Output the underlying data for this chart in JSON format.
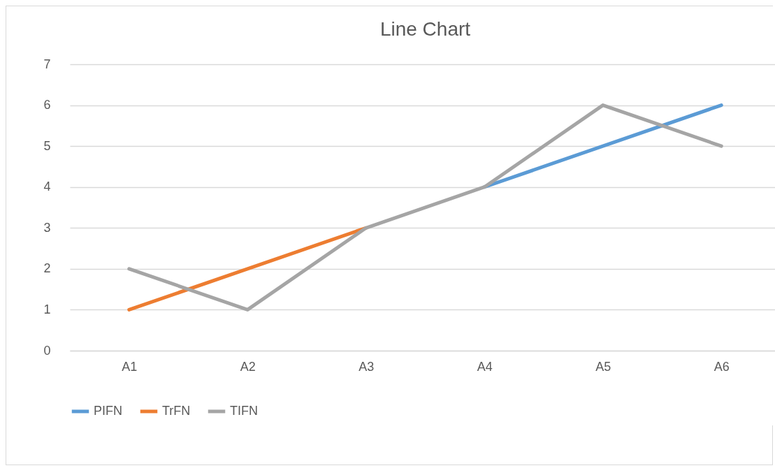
{
  "chart_data": {
    "type": "line",
    "title": "Line Chart",
    "categories": [
      "A1",
      "A2",
      "A3",
      "A4",
      "A5",
      "A6"
    ],
    "series": [
      {
        "name": "PIFN",
        "color": "#5b9bd5",
        "values": [
          null,
          null,
          null,
          4,
          5,
          6
        ]
      },
      {
        "name": "TrFN",
        "color": "#ed7d31",
        "values": [
          1,
          2,
          3,
          null,
          null,
          null
        ]
      },
      {
        "name": "TIFN",
        "color": "#a5a5a5",
        "values": [
          2,
          1,
          3,
          4,
          6,
          5
        ]
      }
    ],
    "ylim": [
      0,
      7
    ],
    "yticks": [
      0,
      1,
      2,
      3,
      4,
      5,
      6,
      7
    ],
    "grid": "y",
    "legend": "bottom",
    "marker": "none",
    "line_style": "solid"
  }
}
